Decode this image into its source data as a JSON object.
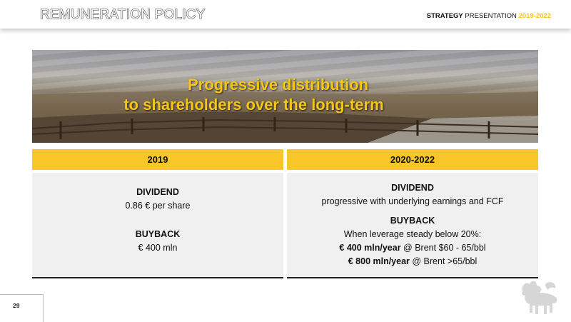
{
  "header": {
    "title": "REMUNERATION POLICY",
    "right_bold": "STRATEGY",
    "right_regular": " PRESENTATION ",
    "right_years": "2019-2022"
  },
  "banner": {
    "line1": "Progressive distribution",
    "line2": "to shareholders over the long-term"
  },
  "columns": {
    "left": {
      "heading": "2019",
      "dividend_title": "DIVIDEND",
      "dividend_value": "0.86 € per share",
      "buyback_title": "BUYBACK",
      "buyback_value": "€ 400 mln"
    },
    "right": {
      "heading": "2020-2022",
      "dividend_title": "DIVIDEND",
      "dividend_value": "progressive with underlying earnings and FCF",
      "buyback_title": "BUYBACK",
      "buyback_condition": "When leverage steady below 20%:",
      "line1_bold": "€ 400 mln/year",
      "line1_rest": "  @ Brent $60 - 65/bbl",
      "line2_bold": "€ 800 mln/year",
      "line2_rest": " @ Brent >65/bbl"
    }
  },
  "footer": {
    "page_number": "29"
  },
  "colors": {
    "accent_yellow": "#f7c72a",
    "banner_text": "#f5c518"
  },
  "icons": {
    "logo": "six-legged-dog-logo"
  }
}
